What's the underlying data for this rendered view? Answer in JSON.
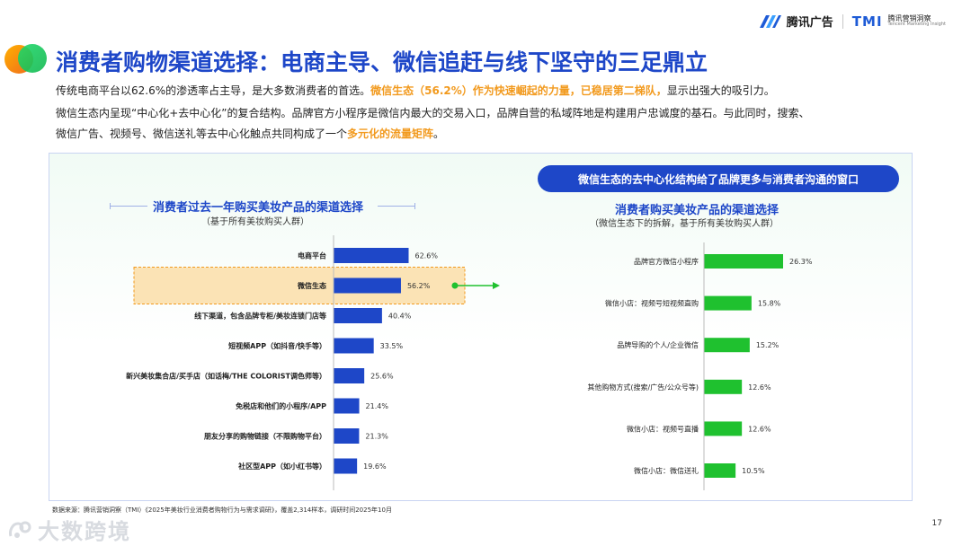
{
  "header": {
    "brand_name": "腾讯广告",
    "tmi_logo": "TMI",
    "tmi_cn": "腾讯营销洞察",
    "tmi_en": "Tencent Marketing Insight"
  },
  "title": "消费者购物渠道选择：电商主导、微信追赶与线下坚守的三足鼎立",
  "paragraph1": {
    "a": "传统电商平台以62.6%的渗透率占主导，是大多数消费者的首选。",
    "b": "微信生态（56.2%）作为快速崛起的力量，已稳居第二梯队，",
    "c": "显示出强大的吸引力。"
  },
  "paragraph2": "微信生态内呈现“中心化+去中心化”的复合结构。品牌官方小程序是微信内最大的交易入口，品牌自营的私域阵地是构建用户忠诚度的基石。与此同时，搜索、",
  "paragraph3": {
    "a": "微信广告、视频号、微信送礼等去中心化触点共同构成了一个",
    "b": "多元化的流量矩阵",
    "c": "。"
  },
  "callout": "微信生态的去中心化结构给了品牌更多与消费者沟通的窗口",
  "colors": {
    "accent": "#1e47c8",
    "bar_left": "#1e47c8",
    "bar_right": "#1fc12f",
    "highlight": "#f29a1e"
  },
  "chart_data": [
    {
      "type": "bar",
      "orientation": "horizontal",
      "title": "消费者过去一年购买美妆产品的渠道选择",
      "subtitle": "（基于所有美妆购买人群）",
      "categories": [
        "电商平台",
        "微信生态",
        "线下渠道，包含品牌专柜/美妆连锁门店等",
        "短视频APP（如抖音/快手等）",
        "新兴美妆集合店/买手店（如话梅/THE COLORIST调色师等）",
        "免税店和他们的小程序/APP",
        "朋友分享的购物链接（不限购物平台）",
        "社区型APP（如小红书等）"
      ],
      "values": [
        62.6,
        56.2,
        40.4,
        33.5,
        25.6,
        21.4,
        21.3,
        19.6
      ],
      "value_labels": [
        "62.6%",
        "56.2%",
        "40.4%",
        "33.5%",
        "25.6%",
        "21.4%",
        "21.3%",
        "19.6%"
      ],
      "highlighted_category": "微信生态",
      "grid": false
    },
    {
      "type": "bar",
      "orientation": "horizontal",
      "title": "消费者购买美妆产品的渠道选择",
      "subtitle": "（微信生态下的拆解，基于所有美妆购买人群）",
      "categories": [
        "品牌官方微信小程序",
        "微信小店：视频号短视频直购",
        "品牌导购的个人/企业微信",
        "其他购物方式(搜索/广告/公众号等)",
        "微信小店：视频号直播",
        "微信小店：微信送礼"
      ],
      "values": [
        26.3,
        15.8,
        15.2,
        12.6,
        12.6,
        10.5
      ],
      "value_labels": [
        "26.3%",
        "15.8%",
        "15.2%",
        "12.6%",
        "12.6%",
        "10.5%"
      ],
      "grid": false
    }
  ],
  "footer": {
    "source": "数据来源：腾讯营销洞察（TMI）《2025年美妆行业消费者购物行为与需求调研》，覆盖2,314样本，调研时间2025年10月",
    "page": "17"
  },
  "watermark": "大数跨境"
}
